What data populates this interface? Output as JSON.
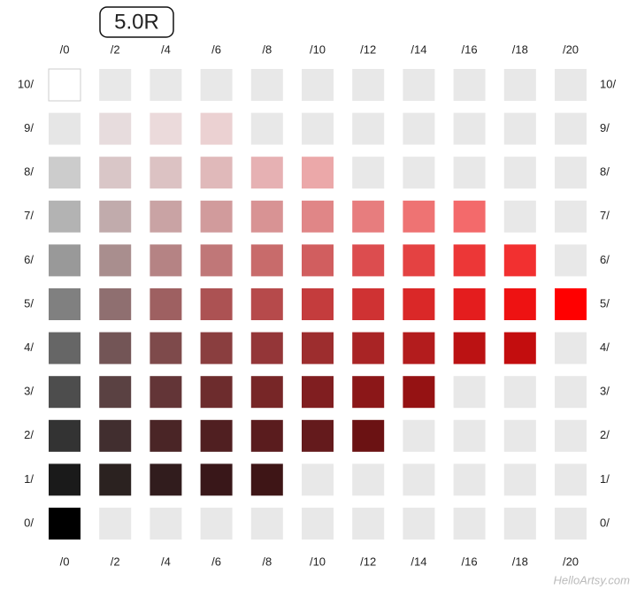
{
  "title": "5.0R",
  "chroma_labels": [
    "/0",
    "/2",
    "/4",
    "/6",
    "/8",
    "/10",
    "/12",
    "/14",
    "/16",
    "/18",
    "/20"
  ],
  "value_labels": [
    "10/",
    "9/",
    "8/",
    "7/",
    "6/",
    "5/",
    "4/",
    "3/",
    "2/",
    "1/",
    "0/"
  ],
  "empty_color": "#e8e8e8",
  "chips": [
    [
      "#ffffff",
      null,
      null,
      null,
      null,
      null,
      null,
      null,
      null,
      null,
      null
    ],
    [
      "#e6e6e6",
      "#e7dcdd",
      "#ebdadb",
      "#ebd1d2",
      null,
      null,
      null,
      null,
      null,
      null,
      null
    ],
    [
      "#cccccc",
      "#d9c6c7",
      "#dcc2c3",
      "#e0b9ba",
      "#e6b1b3",
      "#eba8a9",
      null,
      null,
      null,
      null,
      null
    ],
    [
      "#b3b3b3",
      "#c1abac",
      "#c9a3a4",
      "#d19b9c",
      "#d89394",
      "#e08687",
      "#e77d7e",
      "#ee7373",
      "#f36a6b",
      null,
      null
    ],
    [
      "#999999",
      "#a98e8e",
      "#b58384",
      "#c07778",
      "#c86b6b",
      "#d15e5f",
      "#dc4d4f",
      "#e44242",
      "#ec3737",
      "#f23030",
      null
    ],
    [
      "#808080",
      "#8f6f70",
      "#9e6061",
      "#ac5253",
      "#b64a4b",
      "#c43c3d",
      "#cf3233",
      "#da2828",
      "#e41d1e",
      "#ee1212",
      "#ff0000"
    ],
    [
      "#666666",
      "#735556",
      "#7e4a4b",
      "#8a3e3f",
      "#943638",
      "#9d2d2e",
      "#a92425",
      "#b31c1d",
      "#bb1213",
      "#c30d0e",
      null
    ],
    [
      "#4d4d4d",
      "#5a4142",
      "#633537",
      "#6d2c2d",
      "#772627",
      "#801e20",
      "#8b1718",
      "#951213",
      null,
      null,
      null
    ],
    [
      "#333333",
      "#412e2f",
      "#4a2526",
      "#501f21",
      "#5a1c1e",
      "#641a1c",
      "#6b1213",
      null,
      null,
      null,
      null
    ],
    [
      "#1a1a1a",
      "#2b2220",
      "#311c1d",
      "#391719",
      "#3e1516",
      null,
      null,
      null,
      null,
      null,
      null
    ],
    [
      "#000000",
      null,
      null,
      null,
      null,
      null,
      null,
      null,
      null,
      null,
      null
    ]
  ],
  "watermark": "HelloArtsy.com"
}
